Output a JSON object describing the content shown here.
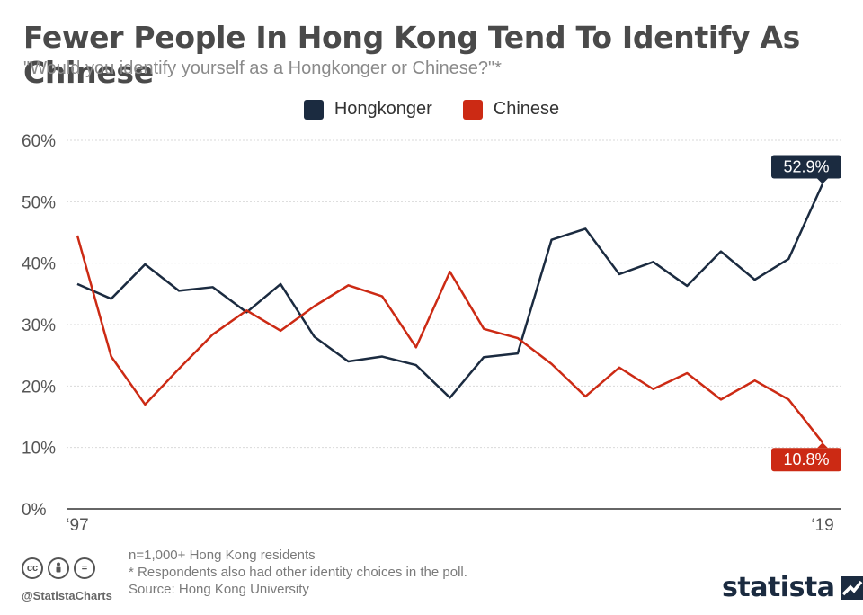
{
  "header": {
    "title": "Fewer People In Hong Kong Tend To Identify As Chinese",
    "subtitle": "\"Would you identify yourself as a Hongkonger or Chinese?\"*"
  },
  "chart_data": {
    "type": "line",
    "x": [
      1997,
      1998,
      1999,
      2000,
      2001,
      2002,
      2003,
      2004,
      2005,
      2006,
      2007,
      2008,
      2009,
      2010,
      2011,
      2012,
      2013,
      2014,
      2015,
      2016,
      2017,
      2018,
      2019
    ],
    "x_tick_labels": [
      "‘97",
      "‘19"
    ],
    "y_ticks": [
      "0%",
      "10%",
      "20%",
      "30%",
      "40%",
      "50%",
      "60%"
    ],
    "ylim": [
      0,
      60
    ],
    "grid": true,
    "legend_position": "top-center",
    "series": [
      {
        "name": "Hongkonger",
        "color": "#1b2b40",
        "values": [
          36.6,
          34.2,
          39.8,
          35.5,
          36.1,
          32.0,
          36.6,
          28.0,
          24.0,
          24.8,
          23.4,
          18.1,
          24.7,
          25.3,
          43.8,
          45.6,
          38.2,
          40.2,
          36.3,
          41.9,
          37.3,
          40.7,
          52.9
        ],
        "end_label": "52.9%"
      },
      {
        "name": "Chinese",
        "color": "#cc2a14",
        "values": [
          44.5,
          24.8,
          17.0,
          22.8,
          28.4,
          32.3,
          29.0,
          33.0,
          36.4,
          34.6,
          26.3,
          38.6,
          29.3,
          27.8,
          23.6,
          18.3,
          23.0,
          19.5,
          22.1,
          17.8,
          20.9,
          17.8,
          10.8
        ],
        "end_label": "10.8%"
      }
    ]
  },
  "footer": {
    "notes": [
      "n=1,000+ Hong Kong residents",
      "* Respondents also had other identity choices in the poll.",
      "Source: Hong Kong University"
    ],
    "handle": "@StatistaCharts",
    "brand": "statista",
    "cc_icons": [
      "cc",
      "by",
      "="
    ]
  },
  "colors": {
    "grid": "#d9d9d9",
    "axis": "#333333",
    "tick_text": "#555555"
  }
}
